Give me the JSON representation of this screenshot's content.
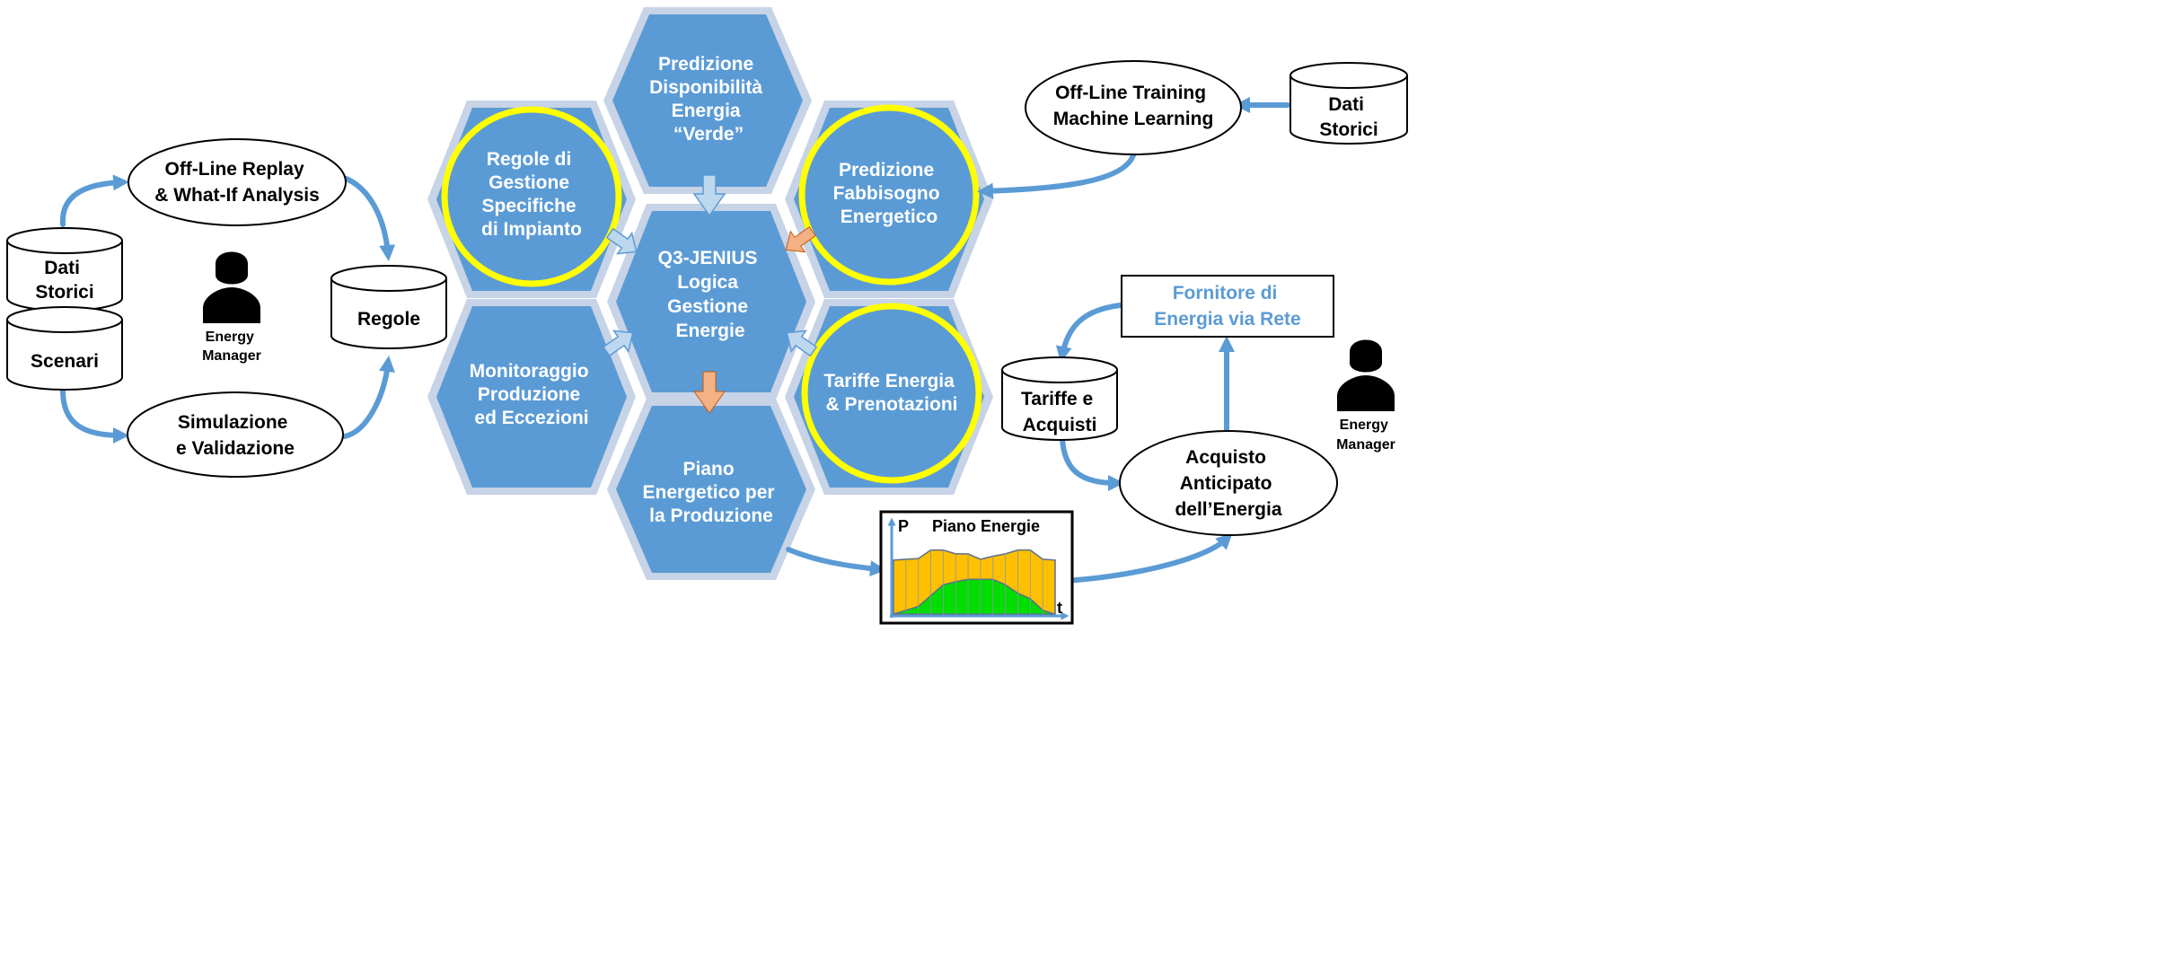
{
  "colors": {
    "hex_fill": "#5b9bd5",
    "hex_border": "#c7d3e6",
    "highlight_ring": "#ffff00",
    "flow_arrow": "#5b9bd5",
    "accent_arrow": "#f4b183",
    "provider_text": "#5b9bd5",
    "chart_supply": "#ffc000",
    "chart_demand": "#00dd00"
  },
  "hexagons": {
    "verde": [
      "Predizione",
      "Disponibilità",
      "Energia",
      "“Verde”"
    ],
    "regole_impianto": [
      "Regole di",
      "Gestione",
      "Specifiche",
      "di Impianto"
    ],
    "fabbisogno": [
      "Predizione",
      "Fabbisogno",
      "Energetico"
    ],
    "center": [
      "Q3-JENIUS",
      "Logica",
      "Gestione",
      "Energie"
    ],
    "monitoraggio": [
      "Monitoraggio",
      "Produzione",
      "ed Eccezioni"
    ],
    "tariffe_prenotazioni": [
      "Tariffe Energia",
      "& Prenotazioni"
    ],
    "piano_produzione": [
      "Piano",
      "Energetico per",
      "la Produzione"
    ]
  },
  "left": {
    "replay": [
      "Off-Line Replay",
      "& What-If Analysis"
    ],
    "simulazione": [
      "Simulazione",
      "e Validazione"
    ],
    "dati_storici": [
      "Dati",
      "Storici"
    ],
    "scenari": [
      "Scenari"
    ],
    "regole": [
      "Regole"
    ],
    "energy_manager": [
      "Energy",
      "Manager"
    ]
  },
  "right": {
    "training": [
      "Off-Line Training",
      "Machine Learning"
    ],
    "dati_storici": [
      "Dati",
      "Storici"
    ],
    "fornitore": [
      "Fornitore di",
      "Energia via Rete"
    ],
    "tariffe_acquisti": [
      "Tariffe e",
      "Acquisti"
    ],
    "acquisto": [
      "Acquisto",
      "Anticipato",
      "dell’Energia"
    ],
    "energy_manager": [
      "Energy",
      "Manager"
    ]
  },
  "chart_data": {
    "type": "area",
    "title": "Piano Energie",
    "ylabel": "P",
    "xlabel": "t",
    "series": [
      {
        "values": [
          0.7,
          0.71,
          0.72,
          0.83,
          0.83,
          0.78,
          0.78,
          0.71,
          0.75,
          0.78,
          0.83,
          0.83,
          0.71,
          0.7
        ]
      },
      {
        "values": [
          0.0,
          0.05,
          0.1,
          0.24,
          0.38,
          0.42,
          0.45,
          0.45,
          0.45,
          0.38,
          0.27,
          0.2,
          0.05,
          0.0
        ]
      }
    ]
  }
}
